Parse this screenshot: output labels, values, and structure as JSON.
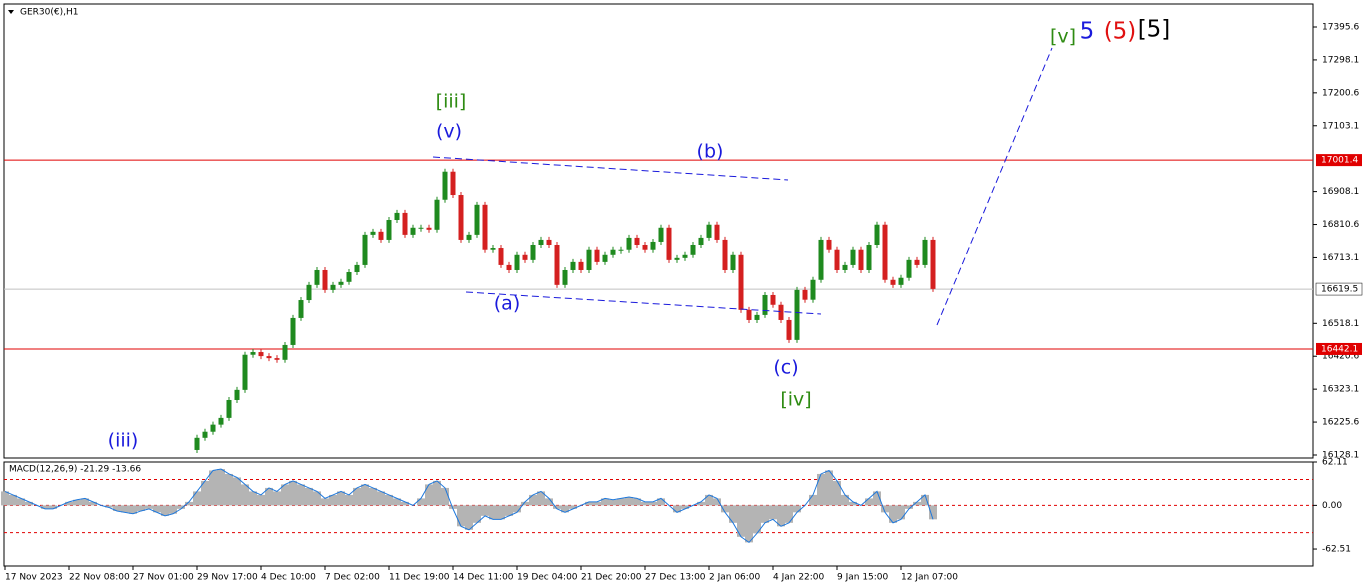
{
  "chart_data": {
    "type": "candlestick",
    "title": "GER30(€),H1",
    "categories": [
      "17 Nov 2023",
      null,
      null,
      null,
      null,
      null,
      null,
      null,
      "22 Nov 08:00",
      null,
      null,
      null,
      null,
      null,
      null,
      null,
      "27 Nov 01:00",
      null,
      null,
      null,
      null,
      null,
      null,
      null,
      "29 Nov 17:00",
      null,
      null,
      null,
      null,
      null,
      null,
      null,
      "4 Dec 10:00",
      null,
      null,
      null,
      null,
      null,
      null,
      null,
      "7 Dec 02:00",
      null,
      null,
      null,
      null,
      null,
      null,
      null,
      "11 Dec 19:00",
      null,
      null,
      null,
      null,
      null,
      null,
      null,
      "14 Dec 11:00",
      null,
      null,
      null,
      null,
      null,
      null,
      null,
      "19 Dec 04:00",
      null,
      null,
      null,
      null,
      null,
      null,
      null,
      "21 Dec 20:00",
      null,
      null,
      null,
      null,
      null,
      null,
      null,
      "27 Dec 13:00",
      null,
      null,
      null,
      null,
      null,
      null,
      null,
      "2 Jan 06:00",
      null,
      null,
      null,
      null,
      null,
      null,
      null,
      "4 Jan 22:00",
      null,
      null,
      null,
      null,
      null,
      null,
      null,
      "9 Jan 15:00",
      null,
      null,
      null,
      null,
      null,
      null,
      null,
      "12 Jan 07:00",
      null,
      null,
      null,
      null
    ],
    "values": [
      null,
      null,
      null,
      null,
      null,
      null,
      null,
      null,
      null,
      null,
      null,
      null,
      null,
      null,
      null,
      null,
      null,
      null,
      null,
      null,
      null,
      null,
      null,
      16143,
      16179,
      16197,
      16218,
      16238,
      16291,
      16321,
      16425,
      16433,
      16421,
      16415,
      16410,
      16454,
      16534,
      16587,
      16632,
      16676,
      16617,
      16632,
      16641,
      16670,
      16691,
      16780,
      16789,
      16765,
      16824,
      16845,
      16780,
      16801,
      16801,
      16795,
      16884,
      16967,
      16898,
      16765,
      16780,
      16869,
      16736,
      16741,
      16691,
      16676,
      16721,
      16706,
      16750,
      16765,
      16750,
      16632,
      16676,
      16700,
      16676,
      16736,
      16700,
      16721,
      16736,
      16736,
      16771,
      16750,
      16736,
      16759,
      16801,
      16706,
      16712,
      16721,
      16750,
      16771,
      16810,
      16765,
      16676,
      16721,
      16558,
      16528,
      16543,
      16602,
      16573,
      16528,
      16469,
      16617,
      16588,
      16647,
      16765,
      16736,
      16676,
      16691,
      16736,
      16676,
      16750,
      16810,
      16647,
      16632,
      16653,
      16706,
      16691,
      16765,
      16620
    ],
    "up_color": "#1f8a1f",
    "down_color": "#d42020",
    "ylim": [
      16119.2,
      17463.7
    ],
    "yticks": [
      17395.6,
      17298.1,
      17200.6,
      17103.1,
      16908.1,
      16810.6,
      16713.1,
      16518.1,
      16420.6,
      16323.1,
      16225.6,
      16128.1
    ],
    "hlines": [
      {
        "value": 17001.4,
        "color": "#e00000"
      },
      {
        "value": 16442.1,
        "color": "#e00000"
      },
      {
        "value": 16619.5,
        "color": "#c0c0c0"
      }
    ],
    "annotations": [
      "[iii]",
      "(v)",
      "(b)",
      "(a)",
      "(c)",
      "[iv]",
      "(iii)",
      "[v]",
      "5",
      "(5)",
      "[5]"
    ],
    "macd": {
      "title": "MACD(12,26,9) -21.29 -13.66",
      "color": "#b4b4b4",
      "line_color": "#1e78dc",
      "values": [
        20,
        15,
        10,
        5,
        0,
        -5,
        -5,
        0,
        5,
        8,
        10,
        5,
        0,
        -3,
        -8,
        -10,
        -12,
        -8,
        -5,
        -10,
        -15,
        -12,
        -5,
        5,
        20,
        35,
        50,
        52,
        45,
        40,
        30,
        20,
        15,
        25,
        20,
        30,
        35,
        30,
        25,
        20,
        10,
        15,
        20,
        15,
        25,
        30,
        25,
        20,
        15,
        10,
        5,
        0,
        10,
        30,
        35,
        25,
        -5,
        -30,
        -35,
        -25,
        -15,
        -20,
        -20,
        -15,
        -10,
        5,
        15,
        20,
        10,
        -5,
        -10,
        -5,
        0,
        5,
        5,
        10,
        8,
        10,
        12,
        10,
        5,
        5,
        10,
        0,
        -10,
        -5,
        0,
        5,
        15,
        10,
        -10,
        -25,
        -45,
        -53,
        -40,
        -25,
        -20,
        -30,
        -25,
        -10,
        0,
        15,
        45,
        50,
        35,
        15,
        5,
        0,
        10,
        20,
        -10,
        -25,
        -20,
        -5,
        5,
        15,
        -20
      ],
      "ylim": [
        -86.8,
        62.11
      ],
      "yticks": [
        62.11,
        {
          "value": 0,
          "label": "0.00"
        },
        -62.51
      ],
      "levels": [
        37,
        0,
        -39
      ]
    }
  }
}
